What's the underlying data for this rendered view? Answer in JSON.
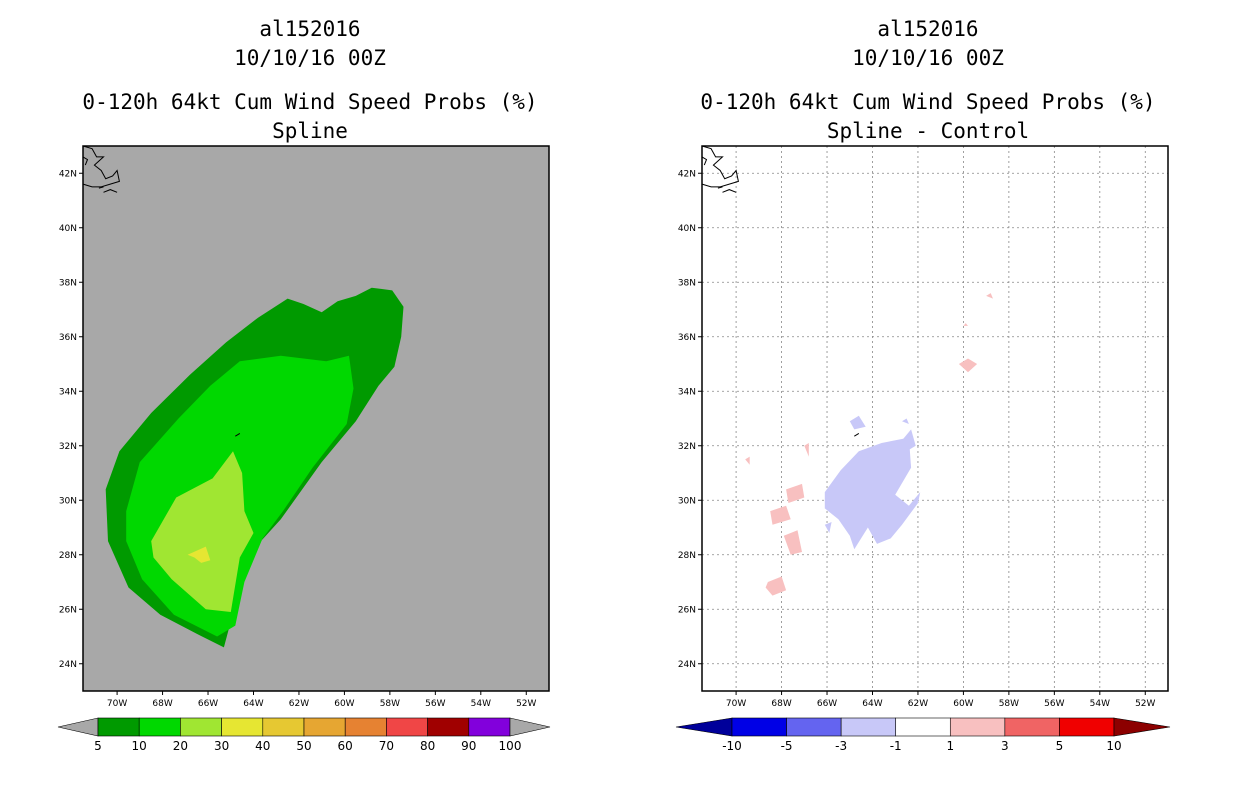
{
  "chart_data": [
    {
      "type": "heatmap",
      "title_line1": "al152016",
      "title_line2": "10/10/16 00Z",
      "title_line3": "0-120h 64kt Cum Wind Speed Probs (%)",
      "subtitle": "Spline",
      "x_ticks": [
        "70W",
        "68W",
        "66W",
        "64W",
        "62W",
        "60W",
        "58W",
        "56W",
        "54W",
        "52W"
      ],
      "y_ticks": [
        "42N",
        "40N",
        "38N",
        "36N",
        "34N",
        "32N",
        "30N",
        "28N",
        "26N",
        "24N"
      ],
      "xlim": [
        -71.5,
        -51.0
      ],
      "ylim": [
        23.0,
        43.0
      ],
      "background_color": "#a8a8a8",
      "grid": false,
      "colorbar": {
        "labels": [
          "5",
          "10",
          "20",
          "30",
          "40",
          "50",
          "60",
          "70",
          "80",
          "90",
          "100"
        ],
        "colors": [
          "#009a00",
          "#00d800",
          "#a0e632",
          "#e6e632",
          "#e6c832",
          "#e6a632",
          "#e68232",
          "#f04646",
          "#a00000",
          "#8200dc"
        ],
        "end_colors": [
          "#a8a8a8",
          "#a8a8a8"
        ]
      },
      "contours": [
        {
          "level": "5-10",
          "color": "#009a00",
          "points": [
            [
              -70.5,
              30.4
            ],
            [
              -69.9,
              31.8
            ],
            [
              -68.5,
              33.2
            ],
            [
              -66.8,
              34.6
            ],
            [
              -65.2,
              35.8
            ],
            [
              -63.8,
              36.7
            ],
            [
              -62.5,
              37.4
            ],
            [
              -61.8,
              37.2
            ],
            [
              -61.0,
              36.9
            ],
            [
              -60.3,
              37.3
            ],
            [
              -59.5,
              37.5
            ],
            [
              -58.8,
              37.8
            ],
            [
              -57.9,
              37.7
            ],
            [
              -57.4,
              37.1
            ],
            [
              -57.5,
              36.0
            ],
            [
              -57.8,
              34.9
            ],
            [
              -58.5,
              34.2
            ],
            [
              -59.5,
              32.9
            ],
            [
              -61.0,
              31.4
            ],
            [
              -62.8,
              29.3
            ],
            [
              -64.0,
              28.2
            ],
            [
              -64.6,
              26.8
            ],
            [
              -65.3,
              24.6
            ],
            [
              -66.5,
              25.1
            ],
            [
              -68.1,
              25.8
            ],
            [
              -69.5,
              26.8
            ],
            [
              -70.4,
              28.5
            ]
          ]
        },
        {
          "level": "10-20",
          "color": "#00d800",
          "points": [
            [
              -69.6,
              29.6
            ],
            [
              -69.0,
              31.4
            ],
            [
              -67.3,
              33.0
            ],
            [
              -65.9,
              34.2
            ],
            [
              -64.6,
              35.1
            ],
            [
              -62.8,
              35.3
            ],
            [
              -60.8,
              35.1
            ],
            [
              -59.8,
              35.3
            ],
            [
              -59.6,
              34.1
            ],
            [
              -59.9,
              32.8
            ],
            [
              -61.4,
              31.2
            ],
            [
              -62.7,
              29.6
            ],
            [
              -63.6,
              28.6
            ],
            [
              -64.4,
              27.0
            ],
            [
              -64.8,
              25.4
            ],
            [
              -65.6,
              25.0
            ],
            [
              -67.5,
              25.8
            ],
            [
              -68.9,
              27.1
            ],
            [
              -69.6,
              28.5
            ]
          ]
        },
        {
          "level": "20-30",
          "color": "#a0e632",
          "points": [
            [
              -68.5,
              28.5
            ],
            [
              -67.4,
              30.1
            ],
            [
              -65.8,
              30.8
            ],
            [
              -64.9,
              31.8
            ],
            [
              -64.5,
              31.0
            ],
            [
              -64.4,
              29.6
            ],
            [
              -64.0,
              28.8
            ],
            [
              -64.6,
              27.9
            ],
            [
              -64.8,
              26.9
            ],
            [
              -65.0,
              25.9
            ],
            [
              -66.1,
              26.0
            ],
            [
              -67.6,
              27.1
            ],
            [
              -68.4,
              27.9
            ]
          ]
        },
        {
          "level": "30-40",
          "color": "#e6e632",
          "points": [
            [
              -66.9,
              28.0
            ],
            [
              -66.1,
              28.3
            ],
            [
              -65.9,
              27.8
            ],
            [
              -66.3,
              27.7
            ],
            [
              -66.6,
              27.9
            ]
          ]
        }
      ]
    },
    {
      "type": "heatmap",
      "title_line1": "al152016",
      "title_line2": "10/10/16 00Z",
      "title_line3": "0-120h 64kt Cum Wind Speed Probs (%)",
      "subtitle": "Spline - Control",
      "x_ticks": [
        "70W",
        "68W",
        "66W",
        "64W",
        "62W",
        "60W",
        "58W",
        "56W",
        "54W",
        "52W"
      ],
      "y_ticks": [
        "42N",
        "40N",
        "38N",
        "36N",
        "34N",
        "32N",
        "30N",
        "28N",
        "26N",
        "24N"
      ],
      "xlim": [
        -71.5,
        -51.0
      ],
      "ylim": [
        23.0,
        43.0
      ],
      "background_color": "#ffffff",
      "grid": true,
      "colorbar": {
        "labels": [
          "-10",
          "-5",
          "-3",
          "-1",
          "1",
          "3",
          "5",
          "10"
        ],
        "colors": [
          "#0000e6",
          "#6464f0",
          "#c8c8f8",
          "#ffffff",
          "#f8c0c0",
          "#f06464",
          "#f00000"
        ],
        "end_colors": [
          "#00009a",
          "#8c0000"
        ]
      },
      "contours": [
        {
          "level": "-3 to -1",
          "color": "#c8c8f8",
          "points": [
            [
              -66.1,
              30.3
            ],
            [
              -65.4,
              31.1
            ],
            [
              -64.6,
              31.8
            ],
            [
              -63.6,
              32.1
            ],
            [
              -62.4,
              32.3
            ],
            [
              -62.3,
              31.2
            ],
            [
              -63.0,
              30.2
            ],
            [
              -62.4,
              29.8
            ],
            [
              -61.9,
              30.3
            ],
            [
              -62.0,
              29.9
            ],
            [
              -62.7,
              29.1
            ],
            [
              -63.2,
              28.6
            ],
            [
              -63.8,
              28.4
            ],
            [
              -64.2,
              29.0
            ],
            [
              -64.8,
              28.2
            ],
            [
              -65.0,
              28.7
            ],
            [
              -65.5,
              29.3
            ],
            [
              -66.1,
              29.7
            ]
          ]
        },
        {
          "level": "-3 to -1",
          "color": "#c8c8f8",
          "points": [
            [
              -65.0,
              32.9
            ],
            [
              -64.6,
              33.1
            ],
            [
              -64.3,
              32.7
            ],
            [
              -64.8,
              32.6
            ]
          ]
        },
        {
          "level": "-3 to -1",
          "color": "#c8c8f8",
          "points": [
            [
              -62.9,
              32.0
            ],
            [
              -62.3,
              32.6
            ],
            [
              -62.1,
              32.0
            ],
            [
              -62.5,
              31.8
            ]
          ]
        },
        {
          "level": "-3 to -1",
          "color": "#c8c8f8",
          "points": [
            [
              -62.7,
              32.9
            ],
            [
              -62.5,
              33.0
            ],
            [
              -62.4,
              32.8
            ]
          ]
        },
        {
          "level": "-3 to -1",
          "color": "#c8c8f8",
          "points": [
            [
              -66.1,
              29.1
            ],
            [
              -65.8,
              29.2
            ],
            [
              -65.9,
              28.8
            ]
          ]
        },
        {
          "level": "1 to 3",
          "color": "#f8c0c0",
          "points": [
            [
              -60.2,
              35.0
            ],
            [
              -59.8,
              35.2
            ],
            [
              -59.4,
              35.0
            ],
            [
              -59.8,
              34.7
            ]
          ]
        },
        {
          "level": "1 to 3",
          "color": "#f8c0c0",
          "points": [
            [
              -59.0,
              37.5
            ],
            [
              -58.8,
              37.6
            ],
            [
              -58.7,
              37.4
            ]
          ]
        },
        {
          "level": "1 to 3",
          "color": "#f8c0c0",
          "points": [
            [
              -60.0,
              36.4
            ],
            [
              -59.9,
              36.5
            ],
            [
              -59.8,
              36.4
            ]
          ]
        },
        {
          "level": "1 to 3",
          "color": "#f8c0c0",
          "points": [
            [
              -67.8,
              30.4
            ],
            [
              -67.1,
              30.6
            ],
            [
              -67.0,
              30.1
            ],
            [
              -67.7,
              29.9
            ]
          ]
        },
        {
          "level": "1 to 3",
          "color": "#f8c0c0",
          "points": [
            [
              -68.5,
              29.6
            ],
            [
              -67.8,
              29.8
            ],
            [
              -67.6,
              29.3
            ],
            [
              -68.4,
              29.1
            ]
          ]
        },
        {
          "level": "1 to 3",
          "color": "#f8c0c0",
          "points": [
            [
              -67.9,
              28.7
            ],
            [
              -67.3,
              28.9
            ],
            [
              -67.1,
              28.1
            ],
            [
              -67.6,
              28.0
            ]
          ]
        },
        {
          "level": "1 to 3",
          "color": "#f8c0c0",
          "points": [
            [
              -68.6,
              27.0
            ],
            [
              -68.0,
              27.2
            ],
            [
              -67.8,
              26.7
            ],
            [
              -68.4,
              26.5
            ],
            [
              -68.7,
              26.8
            ]
          ]
        },
        {
          "level": "1 to 3",
          "color": "#f8c0c0",
          "points": [
            [
              -67.0,
              32.0
            ],
            [
              -66.8,
              32.1
            ],
            [
              -66.8,
              31.6
            ]
          ]
        },
        {
          "level": "1 to 3",
          "color": "#f8c0c0",
          "points": [
            [
              -69.6,
              31.5
            ],
            [
              -69.4,
              31.6
            ],
            [
              -69.4,
              31.3
            ]
          ]
        }
      ]
    }
  ]
}
